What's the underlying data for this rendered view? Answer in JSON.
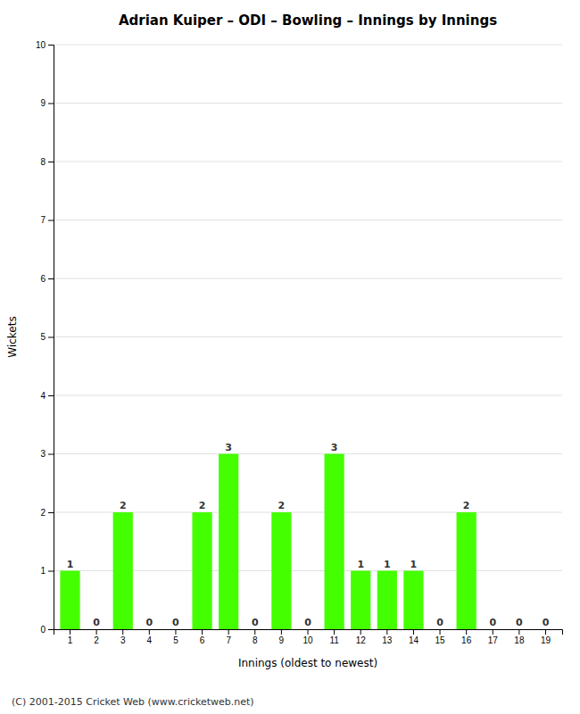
{
  "chart_data": {
    "type": "bar",
    "title": "Adrian Kuiper – ODI – Bowling – Innings by Innings",
    "xlabel": "Innings (oldest to newest)",
    "ylabel": "Wickets",
    "categories": [
      "1",
      "2",
      "3",
      "4",
      "5",
      "6",
      "7",
      "8",
      "9",
      "10",
      "11",
      "12",
      "13",
      "14",
      "15",
      "16",
      "17",
      "18",
      "19"
    ],
    "values": [
      1,
      0,
      2,
      0,
      0,
      2,
      3,
      0,
      2,
      0,
      3,
      1,
      1,
      1,
      0,
      2,
      0,
      0,
      0
    ],
    "color": "#44ff00",
    "ylim": [
      0,
      10
    ],
    "yticks": [
      0,
      1,
      2,
      3,
      4,
      5,
      6,
      7,
      8,
      9,
      10
    ],
    "grid": true,
    "data_labels": true,
    "annotations": [
      "(C) 2001-2015 Cricket Web (www.cricketweb.net)"
    ]
  }
}
